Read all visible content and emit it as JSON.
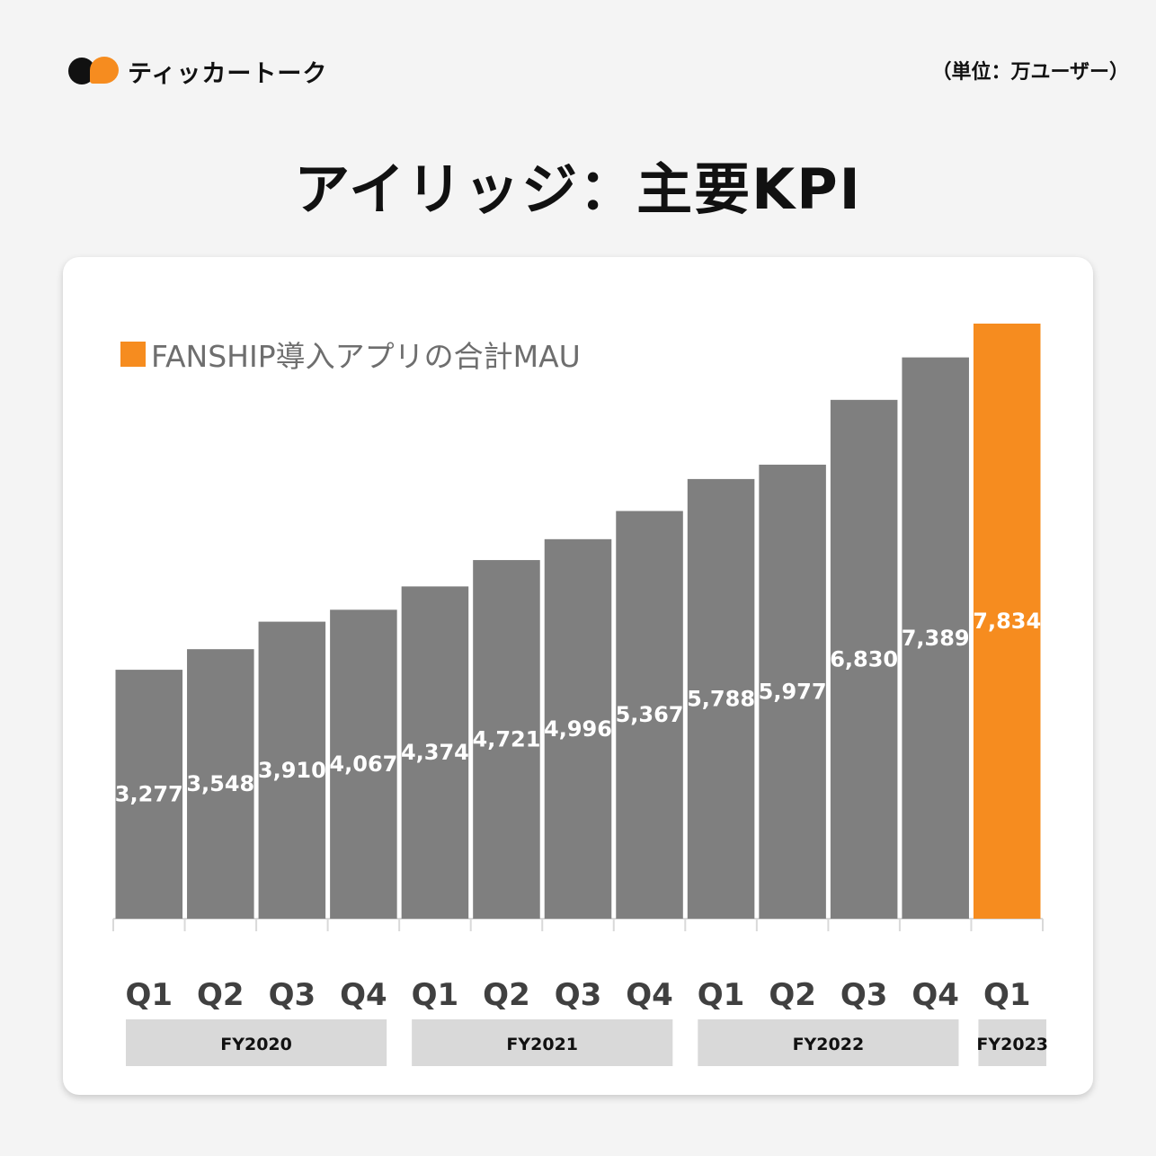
{
  "header": {
    "logo_text": "ティッカートーク",
    "unit": "（単位：万ユーザー）",
    "title": "アイリッジ：主要KPI"
  },
  "colors": {
    "bar": "#7f7f7f",
    "highlight": "#f68c1f",
    "fy_band": "#d9d9d9",
    "background": "#f4f4f4"
  },
  "chart_data": {
    "type": "bar",
    "categories": [
      "Q1",
      "Q2",
      "Q3",
      "Q4",
      "Q1",
      "Q2",
      "Q3",
      "Q4",
      "Q1",
      "Q2",
      "Q3",
      "Q4",
      "Q1"
    ],
    "groups": [
      {
        "label": "FY2020",
        "span": 4
      },
      {
        "label": "FY2021",
        "span": 4
      },
      {
        "label": "FY2022",
        "span": 4
      },
      {
        "label": "FY2023",
        "span": 1
      }
    ],
    "series": [
      {
        "name": "FANSHIP導入アプリの合計MAU",
        "values": [
          3277,
          3548,
          3910,
          4067,
          4374,
          4721,
          4996,
          5367,
          5788,
          5977,
          6830,
          7389,
          7834
        ]
      }
    ],
    "data_labels": [
      "3,277",
      "3,548",
      "3,910",
      "4,067",
      "4,374",
      "4,721",
      "4,996",
      "5,367",
      "5,788",
      "5,977",
      "6,830",
      "7,389",
      "7,834"
    ],
    "highlight_index": 12,
    "ylim": [
      0,
      7834
    ],
    "grid": false,
    "legend_position": "top-left"
  }
}
